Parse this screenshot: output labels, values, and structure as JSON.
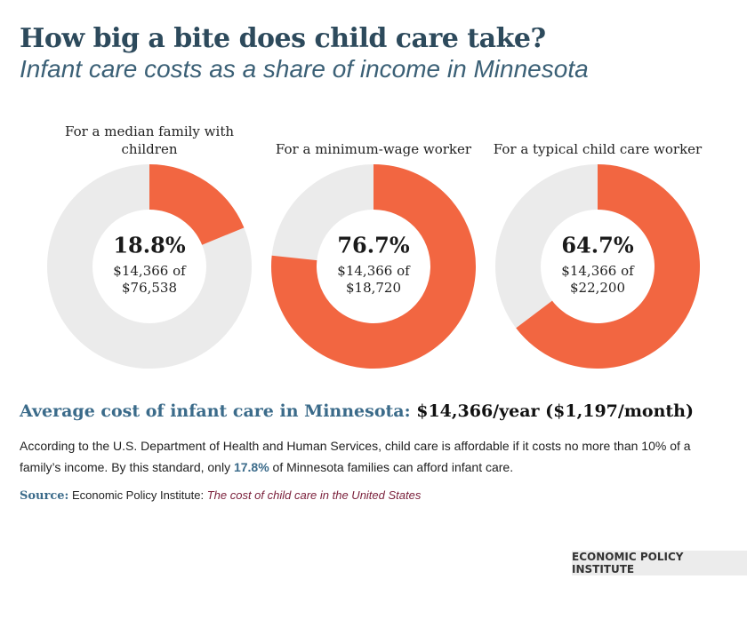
{
  "title": "How big a bite does child care take?",
  "subtitle": "Infant care costs as a share of income in Minnesota",
  "chart_data": [
    {
      "type": "donut",
      "title": "For a median family with children",
      "values": [
        18.8
      ],
      "value_labels": [
        "18.8%"
      ],
      "annotations": [
        "$14,366 of",
        "$76,538"
      ],
      "ylim": [
        0,
        100
      ],
      "color": "#f26641",
      "track_color": "#ebebeb"
    },
    {
      "type": "donut",
      "title": "For a minimum-wage worker",
      "values": [
        76.7
      ],
      "value_labels": [
        "76.7%"
      ],
      "annotations": [
        "$14,366 of",
        "$18,720"
      ],
      "ylim": [
        0,
        100
      ],
      "color": "#f26641",
      "track_color": "#ebebeb"
    },
    {
      "type": "donut",
      "title": "For a typical child care worker",
      "values": [
        64.7
      ],
      "value_labels": [
        "64.7%"
      ],
      "annotations": [
        "$14,366 of",
        "$22,200"
      ],
      "ylim": [
        0,
        100
      ],
      "color": "#f26641",
      "track_color": "#ebebeb"
    }
  ],
  "summary": {
    "label": "Average cost of infant care in Minnesota:",
    "value": "$14,366/year ($1,197/month)"
  },
  "note": [
    "According to the U.S. Department of Health and Human Services, child care is affordable if it costs no more than 10% of a family’s income.  By this standard, only ",
    "17.8%",
    " of Minnesota families can afford infant care."
  ],
  "source": {
    "label": "Source:",
    "text": "Economic Policy Institute: ",
    "title": "The cost of child care in the United States"
  },
  "footer": "ECONOMIC POLICY INSTITUTE"
}
